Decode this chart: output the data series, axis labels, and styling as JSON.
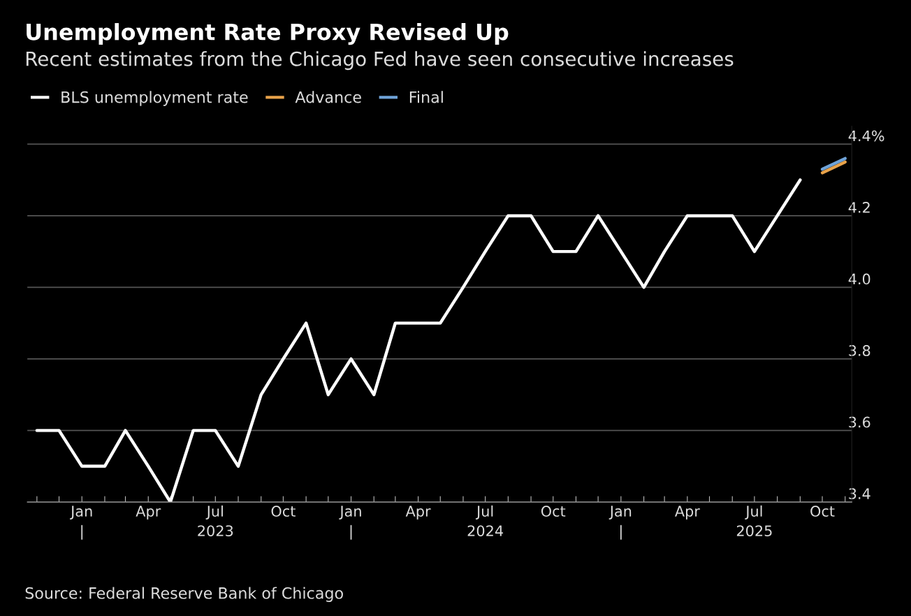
{
  "chart_data": {
    "type": "line",
    "title": "Unemployment Rate Proxy Revised Up",
    "subtitle": "Recent estimates from the Chicago Fed have seen consecutive increases",
    "series": [
      {
        "name": "BLS unemployment rate",
        "color": "#ffffff",
        "x": [
          "2022-11",
          "2022-12",
          "2023-01",
          "2023-02",
          "2023-03",
          "2023-04",
          "2023-05",
          "2023-06",
          "2023-07",
          "2023-08",
          "2023-09",
          "2023-10",
          "2023-11",
          "2023-12",
          "2024-01",
          "2024-02",
          "2024-03",
          "2024-04",
          "2024-05",
          "2024-06",
          "2024-07",
          "2024-08",
          "2024-09",
          "2024-10",
          "2024-11",
          "2024-12",
          "2025-01",
          "2025-02",
          "2025-03",
          "2025-04",
          "2025-05",
          "2025-06",
          "2025-07",
          "2025-08",
          "2025-09"
        ],
        "values": [
          3.6,
          3.6,
          3.5,
          3.5,
          3.6,
          3.5,
          3.4,
          3.6,
          3.6,
          3.5,
          3.7,
          3.8,
          3.9,
          3.7,
          3.8,
          3.7,
          3.9,
          3.9,
          3.9,
          4.0,
          4.1,
          4.2,
          4.2,
          4.1,
          4.1,
          4.2,
          4.1,
          4.0,
          4.1,
          4.2,
          4.2,
          4.2,
          4.1,
          4.2,
          4.3
        ]
      },
      {
        "name": "Advance",
        "color": "#e8a24a",
        "x": [
          "2025-10",
          "2025-11"
        ],
        "values": [
          4.32,
          4.35
        ]
      },
      {
        "name": "Final",
        "color": "#6fa3d8",
        "x": [
          "2025-10",
          "2025-11"
        ],
        "values": [
          4.33,
          4.36
        ]
      }
    ],
    "xlim": [
      "2022-10-19",
      "2025-11-10"
    ],
    "xticks": [
      {
        "value": "2022-11-01",
        "label": null
      },
      {
        "value": "2022-12-01",
        "label": null
      },
      {
        "value": "2023-01-01",
        "label": "Jan\n|"
      },
      {
        "value": "2023-02-01",
        "label": null
      },
      {
        "value": "2023-03-01",
        "label": null
      },
      {
        "value": "2023-04-01",
        "label": "Apr"
      },
      {
        "value": "2023-05-01",
        "label": null
      },
      {
        "value": "2023-06-01",
        "label": null
      },
      {
        "value": "2023-07-01",
        "label": "Jul\n2023"
      },
      {
        "value": "2023-08-01",
        "label": null
      },
      {
        "value": "2023-09-01",
        "label": null
      },
      {
        "value": "2023-10-01",
        "label": "Oct"
      },
      {
        "value": "2023-11-01",
        "label": null
      },
      {
        "value": "2023-12-01",
        "label": null
      },
      {
        "value": "2024-01-01",
        "label": "Jan\n|"
      },
      {
        "value": "2024-02-01",
        "label": null
      },
      {
        "value": "2024-03-01",
        "label": null
      },
      {
        "value": "2024-04-01",
        "label": "Apr"
      },
      {
        "value": "2024-05-01",
        "label": null
      },
      {
        "value": "2024-06-01",
        "label": null
      },
      {
        "value": "2024-07-01",
        "label": "Jul\n2024"
      },
      {
        "value": "2024-08-01",
        "label": null
      },
      {
        "value": "2024-09-01",
        "label": null
      },
      {
        "value": "2024-10-01",
        "label": "Oct"
      },
      {
        "value": "2024-11-01",
        "label": null
      },
      {
        "value": "2024-12-01",
        "label": null
      },
      {
        "value": "2025-01-01",
        "label": "Jan\n|"
      },
      {
        "value": "2025-02-01",
        "label": null
      },
      {
        "value": "2025-03-01",
        "label": null
      },
      {
        "value": "2025-04-01",
        "label": "Apr"
      },
      {
        "value": "2025-05-01",
        "label": null
      },
      {
        "value": "2025-06-01",
        "label": null
      },
      {
        "value": "2025-07-01",
        "label": "Jul\n2025"
      },
      {
        "value": "2025-08-01",
        "label": null
      },
      {
        "value": "2025-09-01",
        "label": null
      },
      {
        "value": "2025-10-01",
        "label": "Oct"
      },
      {
        "value": "2025-11-01",
        "label": null
      }
    ],
    "ylim": [
      3.4,
      4.45
    ],
    "yticks": [
      3.4,
      3.6,
      3.8,
      {
        "value": 4.0,
        "label": "4.0"
      },
      4.2,
      {
        "value": 4.4,
        "label": "4.4%"
      }
    ],
    "grid": "y",
    "legend": "top left",
    "marker": "none",
    "line_style": "solid",
    "annotations": [
      "Source: Federal Reserve Bank of Chicago"
    ]
  }
}
